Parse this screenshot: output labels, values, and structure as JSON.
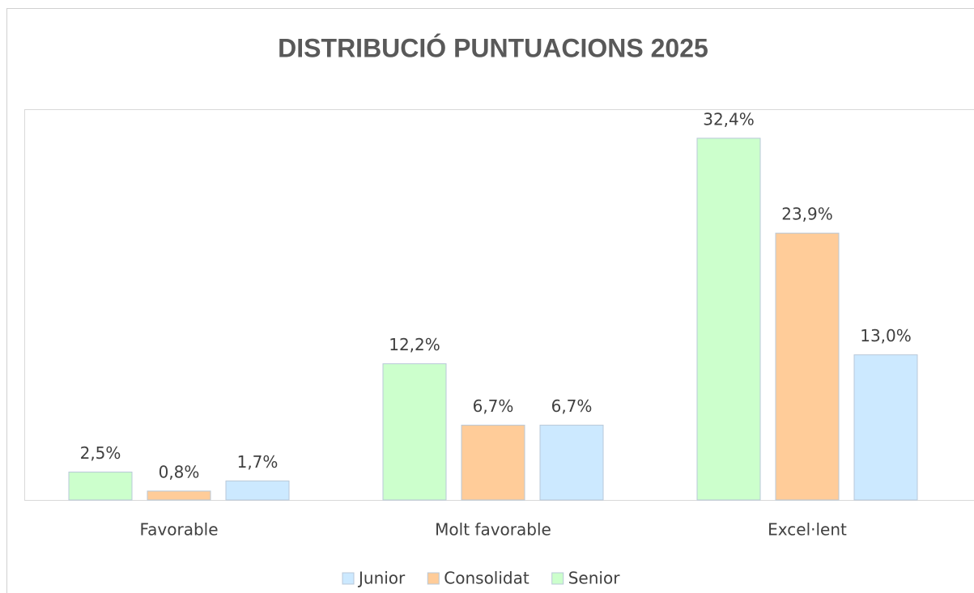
{
  "chart_data": {
    "type": "bar",
    "title": "DISTRIBUCIÓ PUNTUACIONS 2025",
    "categories": [
      "Favorable",
      "Molt favorable",
      "Excel·lent"
    ],
    "series": [
      {
        "name": "Senior",
        "color": "#ccffcc",
        "values": [
          2.5,
          12.2,
          32.4
        ],
        "value_labels": [
          "2,5%",
          "12,2%",
          "32,4%"
        ]
      },
      {
        "name": "Consolidat",
        "color": "#ffcc99",
        "values": [
          0.8,
          6.7,
          23.9
        ],
        "value_labels": [
          "0,8%",
          "6,7%",
          "23,9%"
        ]
      },
      {
        "name": "Junior",
        "color": "#cce9ff",
        "values": [
          1.7,
          6.7,
          13.0
        ],
        "value_labels": [
          "1,7%",
          "6,7%",
          "13,0%"
        ]
      }
    ],
    "legend_order": [
      "Junior",
      "Consolidat",
      "Senior"
    ],
    "ylim": [
      0,
      35
    ]
  }
}
